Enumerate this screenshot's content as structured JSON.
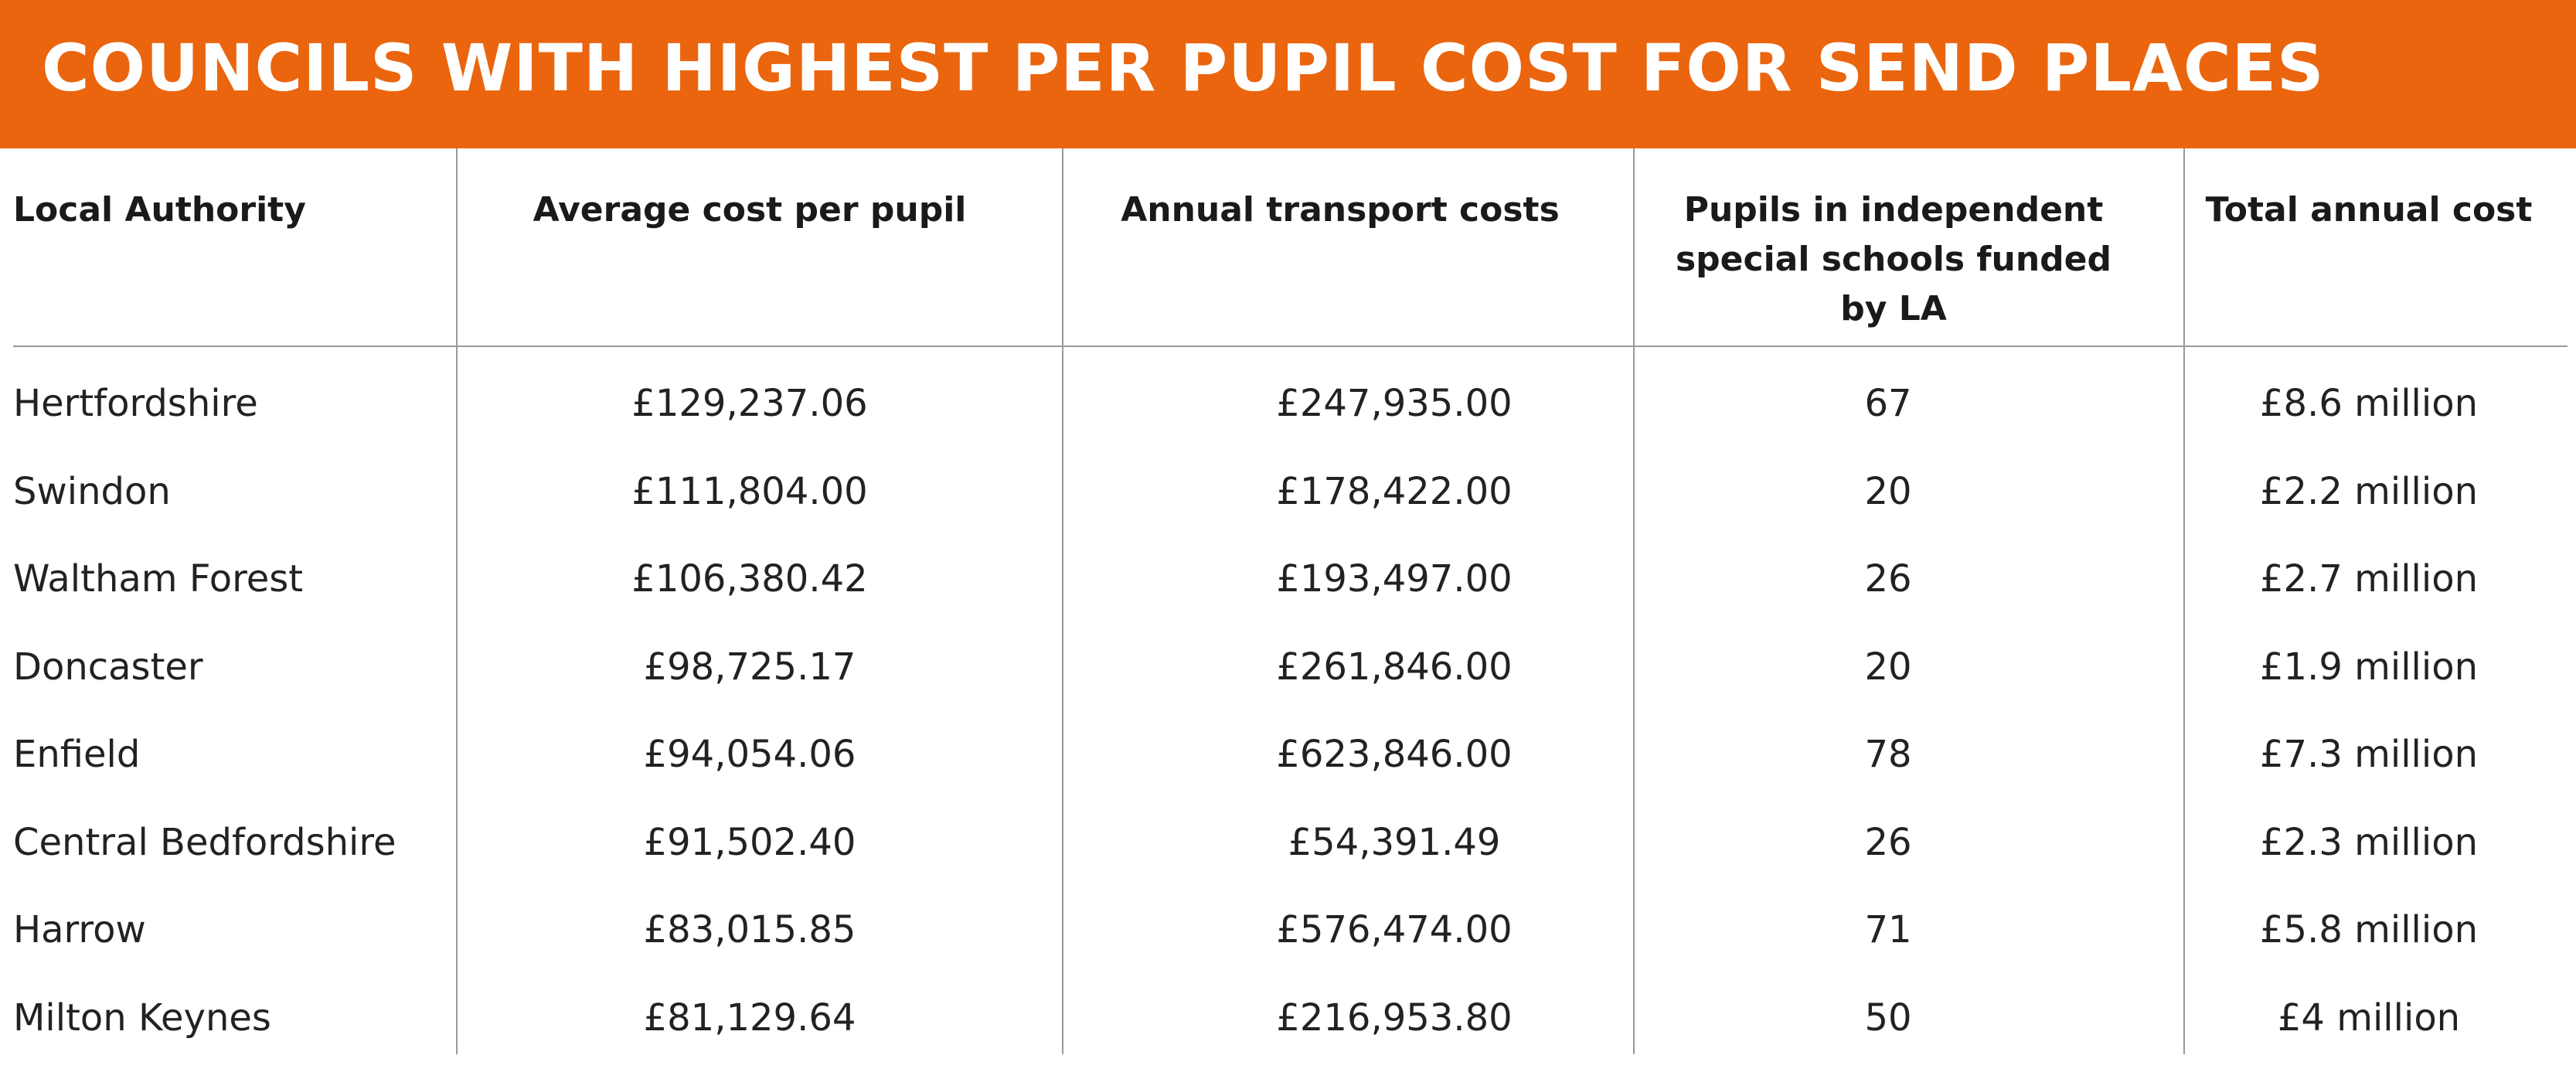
{
  "title": "COUNCILS WITH HIGHEST PER PUPIL COST FOR SEND PLACES",
  "colors": {
    "banner": "#ea650d",
    "banner_text": "#ffffff",
    "rule": "#9a9a9a"
  },
  "chart_data": {
    "type": "table",
    "title": "COUNCILS WITH HIGHEST PER PUPIL COST FOR SEND PLACES",
    "columns": [
      "Local Authority",
      "Average cost per pupil",
      "Annual transport costs",
      "Pupils in independent special schools funded by LA",
      "Total annual cost"
    ],
    "rows": [
      [
        "Hertfordshire",
        "£129,237.06",
        "£247,935.00",
        "67",
        "£8.6 million"
      ],
      [
        "Swindon",
        "£111,804.00",
        "£178,422.00",
        "20",
        "£2.2 million"
      ],
      [
        "Waltham Forest",
        "£106,380.42",
        "£193,497.00",
        "26",
        "£2.7 million"
      ],
      [
        "Doncaster",
        "£98,725.17",
        "£261,846.00",
        "20",
        "£1.9 million"
      ],
      [
        "Enfield",
        "£94,054.06",
        "£623,846.00",
        "78",
        "£7.3 million"
      ],
      [
        "Central Bedfordshire",
        "£91,502.40",
        "£54,391.49",
        "26",
        "£2.3 million"
      ],
      [
        "Harrow",
        "£83,015.85",
        "£576,474.00",
        "71",
        "£5.8 million"
      ],
      [
        "Milton Keynes",
        "£81,129.64",
        "£216,953.80",
        "50",
        "£4 million"
      ]
    ]
  }
}
